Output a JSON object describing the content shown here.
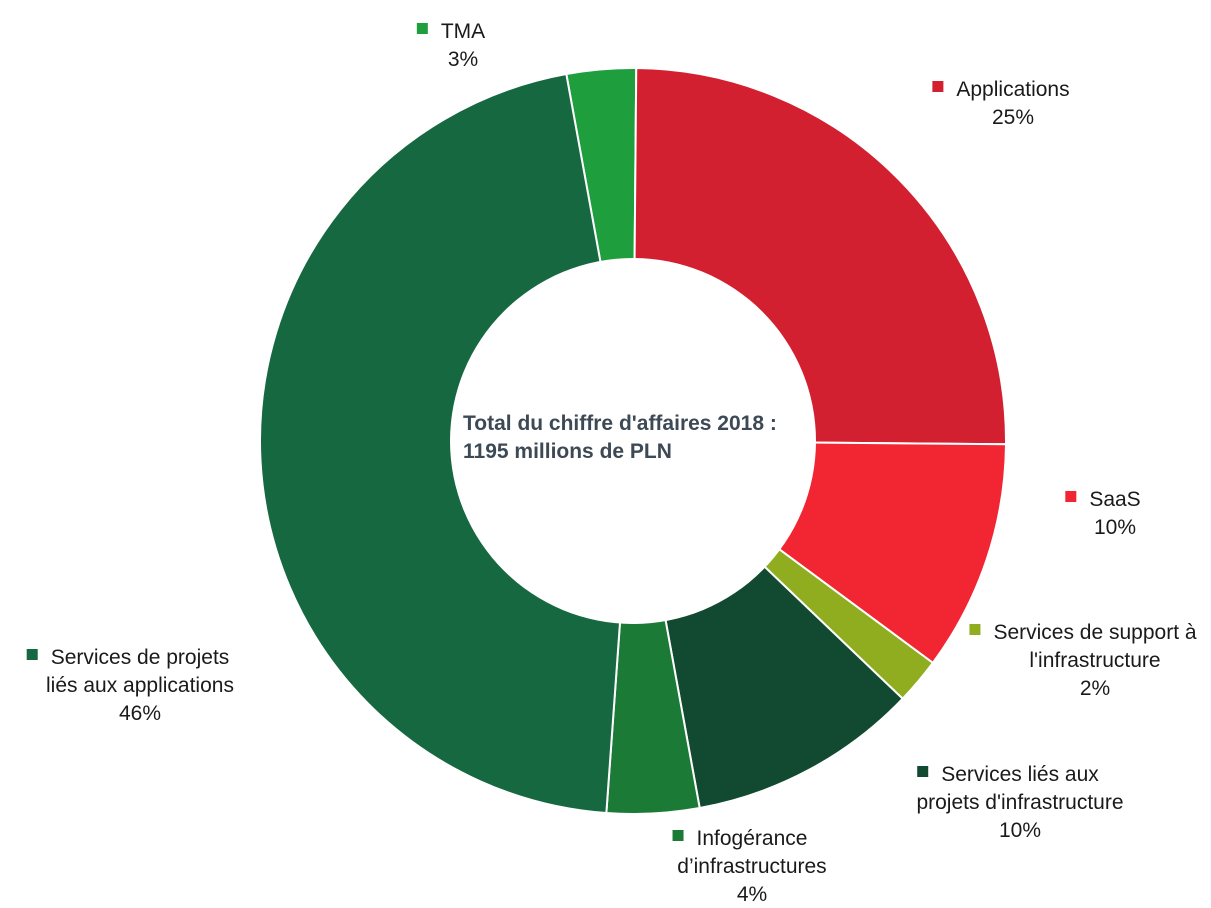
{
  "chart_data": {
    "type": "pie",
    "variant": "donut",
    "center_text": [
      "Total du chiffre d'affaires 2018 :",
      "1195 millions de PLN"
    ],
    "legend": "labels next to slices",
    "slices": [
      {
        "key": "tma",
        "label_lines": [
          "TMA"
        ],
        "value": 3,
        "value_label": "3%",
        "color": "#1f9e3e"
      },
      {
        "key": "applications",
        "label_lines": [
          "Applications"
        ],
        "value": 25,
        "value_label": "25%",
        "color": "#d32030"
      },
      {
        "key": "saas",
        "label_lines": [
          "SaaS"
        ],
        "value": 10,
        "value_label": "10%",
        "color": "#f22533"
      },
      {
        "key": "support-infra",
        "label_lines": [
          "Services de support à",
          "l'infrastructure"
        ],
        "value": 2,
        "value_label": "2%",
        "color": "#8fad1e"
      },
      {
        "key": "projets-infra",
        "label_lines": [
          "Services liés aux",
          "projets d'infrastructure"
        ],
        "value": 10,
        "value_label": "10%",
        "color": "#114a30"
      },
      {
        "key": "infogerance",
        "label_lines": [
          "Infogérance",
          "d’infrastructures"
        ],
        "value": 4,
        "value_label": "4%",
        "color": "#1b7a35"
      },
      {
        "key": "projets-applications",
        "label_lines": [
          "Services de projets",
          "liés aux applications"
        ],
        "value": 46,
        "value_label": "46%",
        "color": "#15683f"
      }
    ]
  }
}
